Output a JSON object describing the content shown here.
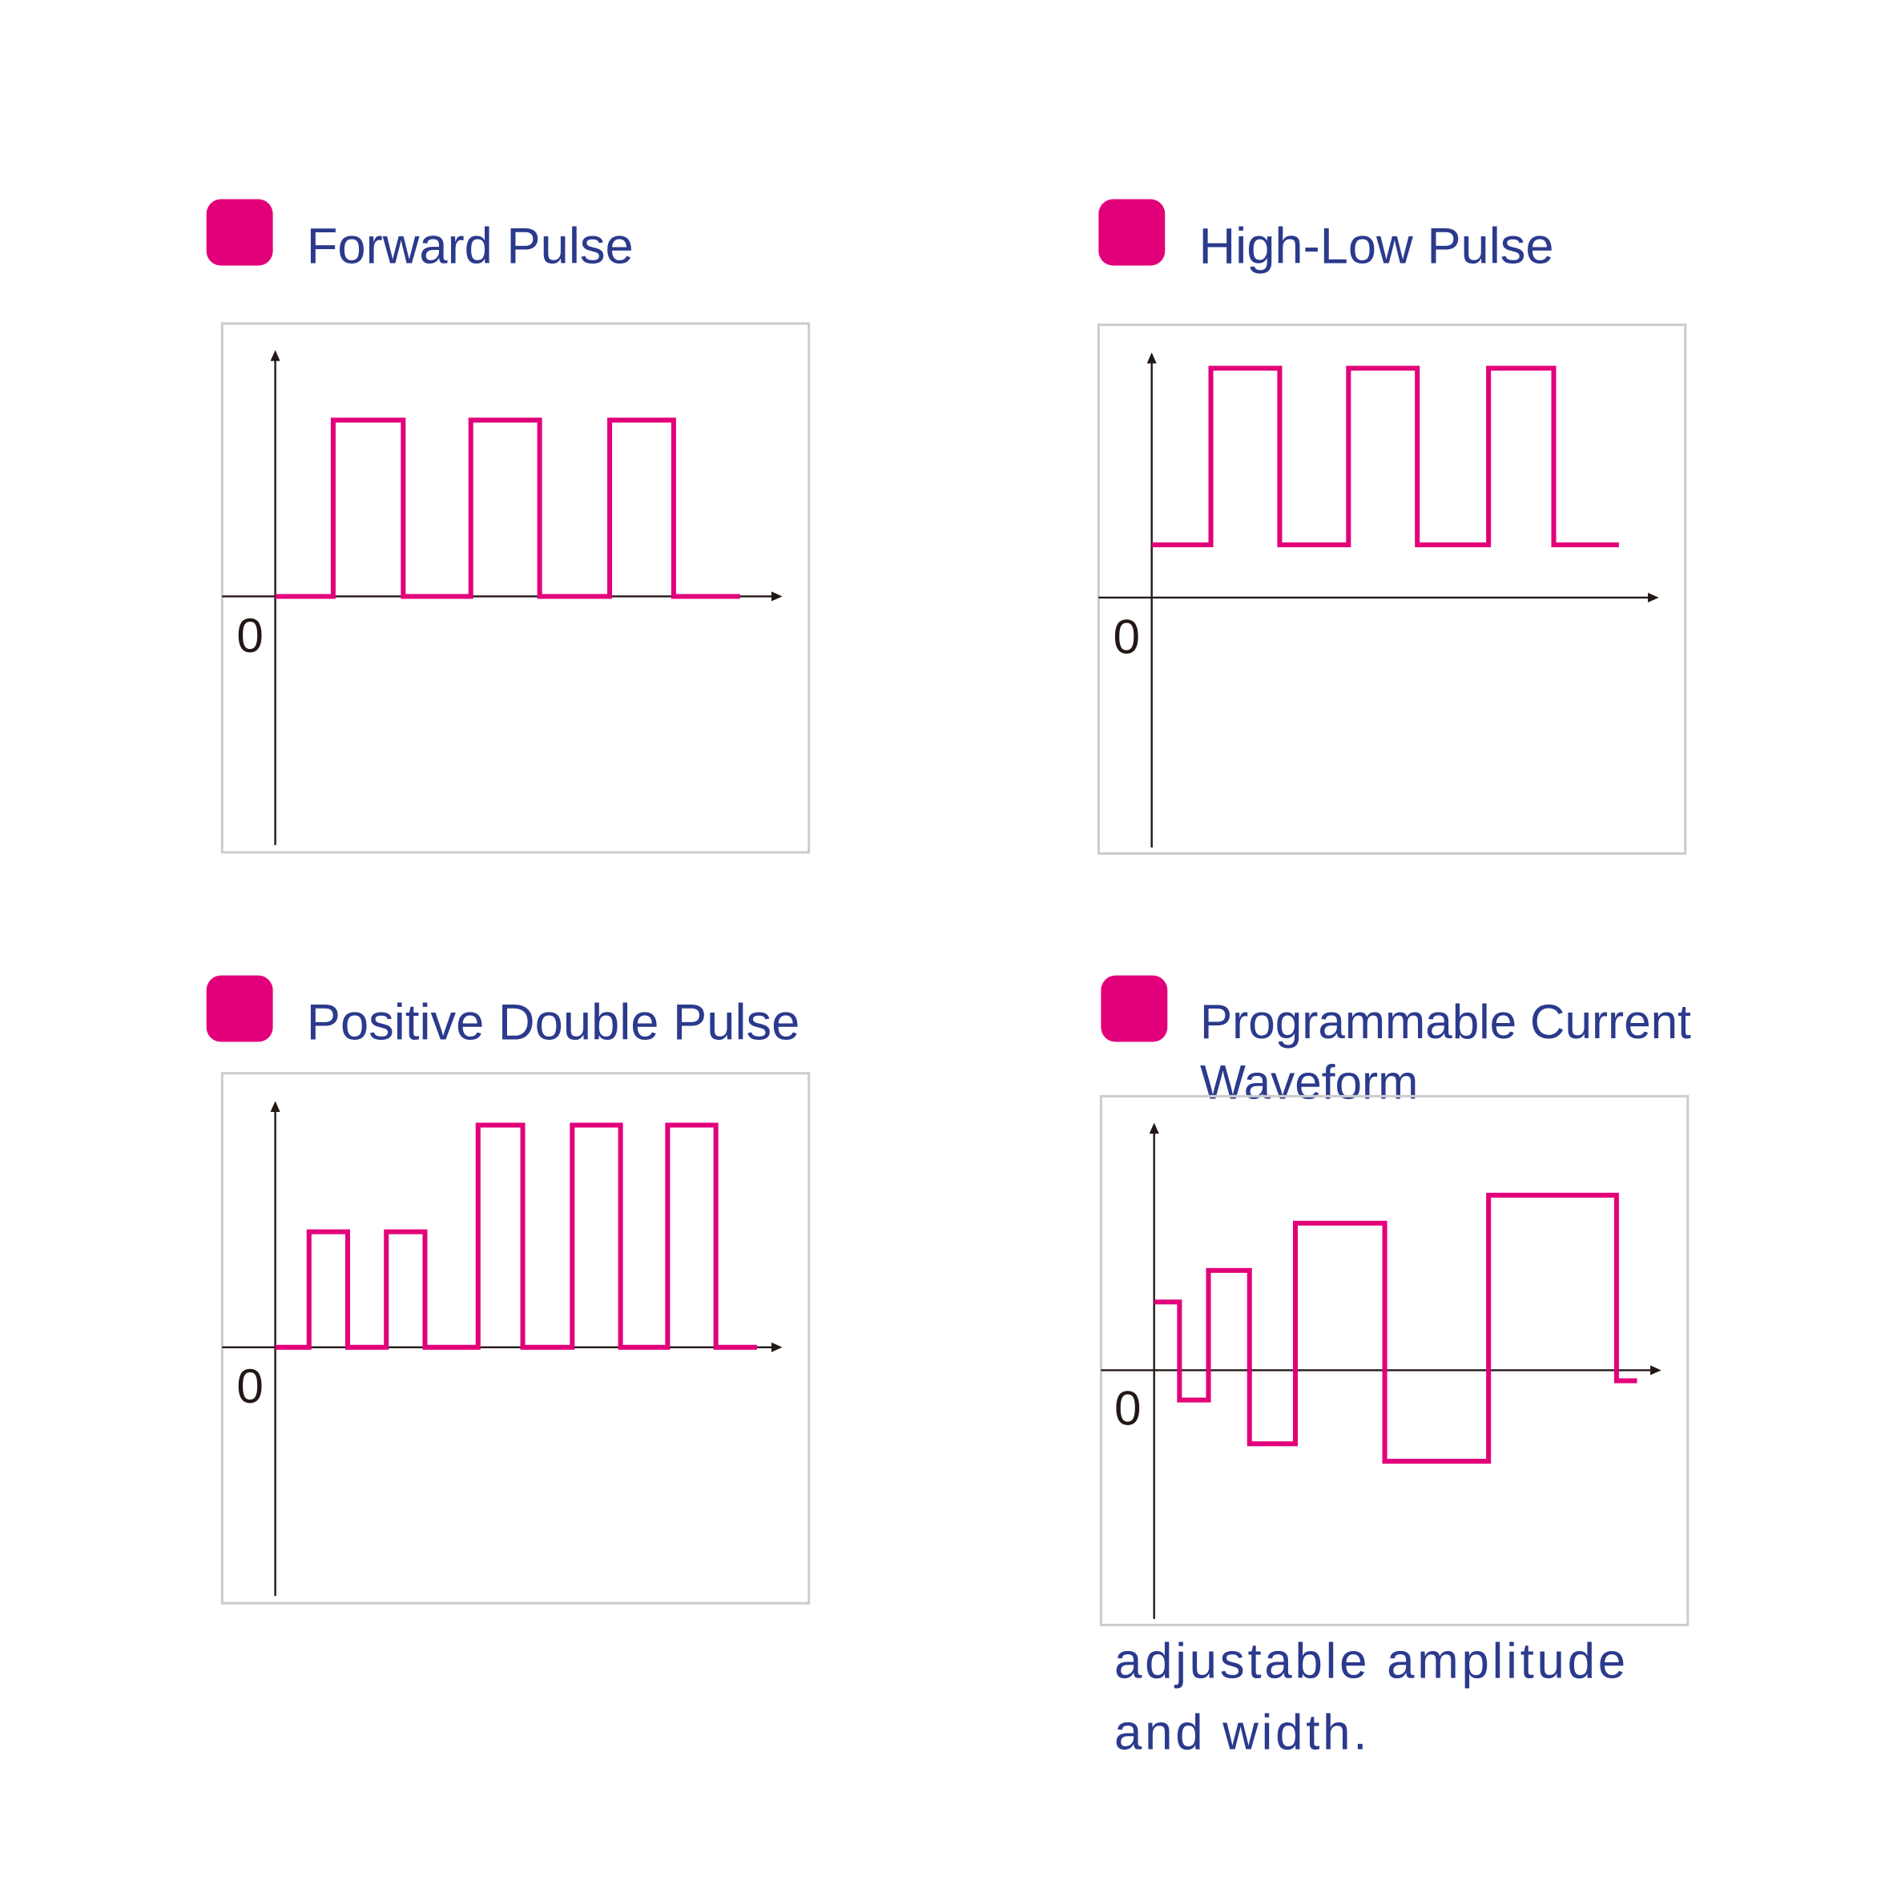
{
  "colors": {
    "accent": "#e2007a",
    "text": "#2b3a8c",
    "axis": "#231815",
    "frame": "#cccccc"
  },
  "panels": [
    {
      "title": "Forward Pulse",
      "zero_label": "0"
    },
    {
      "title": "High-Low Pulse",
      "zero_label": "0"
    },
    {
      "title": "Positive Double Pulse",
      "zero_label": "0"
    },
    {
      "title_lines": [
        "Programmable Current",
        "Waveform"
      ],
      "zero_label": "0",
      "caption_lines": [
        "adjustable amplitude",
        "and width."
      ]
    }
  ],
  "chart_data": [
    {
      "type": "line",
      "title": "Forward Pulse",
      "step": true,
      "t": [
        0,
        4.8,
        10.6,
        16.2,
        21.9,
        27.7,
        33,
        38.5
      ],
      "levels": [
        0,
        1,
        0,
        1,
        0,
        1,
        0
      ]
    },
    {
      "type": "line",
      "title": "High-Low Pulse",
      "step": true,
      "t": [
        0,
        4.9,
        10.6,
        16.3,
        22,
        27.9,
        33.3,
        38.7
      ],
      "levels": [
        0.23,
        1,
        0.23,
        1,
        0.23,
        1,
        0.23
      ]
    },
    {
      "type": "line",
      "title": "Positive Double Pulse",
      "step": true,
      "t": [
        0,
        2.8,
        6,
        9.2,
        12.4,
        16.8,
        20.5,
        24.6,
        28.6,
        32.5,
        36.5,
        39.9
      ],
      "levels": [
        0,
        0.52,
        0,
        0.52,
        0,
        1,
        0,
        1,
        0,
        1,
        0
      ]
    },
    {
      "type": "line",
      "title": "Programmable Current Waveform",
      "step": true,
      "t": [
        0,
        2.1,
        4.5,
        7.9,
        11.7,
        19.1,
        27.7,
        38.3,
        40
      ],
      "levels": [
        0.39,
        -0.17,
        0.57,
        -0.42,
        0.84,
        -0.52,
        1,
        -0.06
      ]
    }
  ]
}
